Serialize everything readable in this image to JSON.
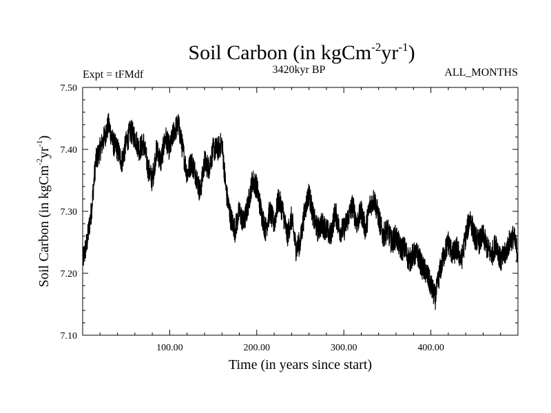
{
  "chart_data": {
    "type": "line",
    "title": "Soil Carbon (in kgCm",
    "title_exp1": "-2",
    "title_mid": "yr",
    "title_exp2": "-1",
    "title_end": ")",
    "subtitle_left": "Expt = tFMdf",
    "subtitle_center": "3420kyr BP",
    "subtitle_right": "ALL_MONTHS",
    "xlabel": "Time (in years since start)",
    "ylabel": "Soil Carbon (in kgCm",
    "ylabel_exp1": "-2",
    "ylabel_mid": "yr",
    "ylabel_exp2": "-1",
    "ylabel_end": ")",
    "xlim": [
      0,
      500
    ],
    "ylim": [
      7.1,
      7.5
    ],
    "xticks": [
      100,
      200,
      300,
      400
    ],
    "xtick_labels": [
      "100.00",
      "200.00",
      "300.00",
      "400.00"
    ],
    "yticks": [
      7.1,
      7.2,
      7.3,
      7.4,
      7.5
    ],
    "ytick_labels": [
      "7.10",
      "7.20",
      "7.30",
      "7.40",
      "7.50"
    ],
    "grid": false,
    "series": [
      {
        "name": "Soil Carbon",
        "color": "#000000",
        "x": [
          0,
          5,
          10,
          15,
          20,
          25,
          30,
          35,
          40,
          45,
          50,
          55,
          60,
          65,
          70,
          75,
          80,
          85,
          90,
          95,
          100,
          105,
          110,
          115,
          120,
          125,
          130,
          135,
          140,
          145,
          150,
          155,
          160,
          165,
          170,
          175,
          180,
          185,
          190,
          195,
          200,
          205,
          210,
          215,
          220,
          225,
          230,
          235,
          240,
          245,
          250,
          255,
          260,
          265,
          270,
          275,
          280,
          285,
          290,
          295,
          300,
          305,
          310,
          315,
          320,
          325,
          330,
          335,
          340,
          345,
          350,
          355,
          360,
          365,
          370,
          375,
          380,
          385,
          390,
          395,
          400,
          405,
          410,
          415,
          420,
          425,
          430,
          435,
          440,
          445,
          450,
          455,
          460,
          465,
          470,
          475,
          480,
          485,
          490,
          495,
          500
        ],
        "y": [
          7.22,
          7.25,
          7.3,
          7.38,
          7.4,
          7.42,
          7.44,
          7.41,
          7.4,
          7.38,
          7.41,
          7.43,
          7.42,
          7.4,
          7.41,
          7.37,
          7.35,
          7.4,
          7.38,
          7.42,
          7.4,
          7.43,
          7.44,
          7.4,
          7.36,
          7.38,
          7.36,
          7.33,
          7.38,
          7.37,
          7.4,
          7.4,
          7.41,
          7.33,
          7.29,
          7.27,
          7.3,
          7.28,
          7.31,
          7.35,
          7.34,
          7.3,
          7.27,
          7.3,
          7.28,
          7.32,
          7.3,
          7.26,
          7.29,
          7.24,
          7.25,
          7.3,
          7.33,
          7.29,
          7.27,
          7.28,
          7.27,
          7.26,
          7.3,
          7.27,
          7.27,
          7.29,
          7.31,
          7.28,
          7.3,
          7.27,
          7.31,
          7.32,
          7.29,
          7.26,
          7.27,
          7.25,
          7.26,
          7.24,
          7.24,
          7.22,
          7.23,
          7.23,
          7.21,
          7.2,
          7.18,
          7.16,
          7.2,
          7.23,
          7.25,
          7.23,
          7.24,
          7.22,
          7.26,
          7.29,
          7.26,
          7.25,
          7.26,
          7.24,
          7.23,
          7.25,
          7.22,
          7.23,
          7.25,
          7.26,
          7.23
        ],
        "noise_band": 0.02
      }
    ]
  }
}
